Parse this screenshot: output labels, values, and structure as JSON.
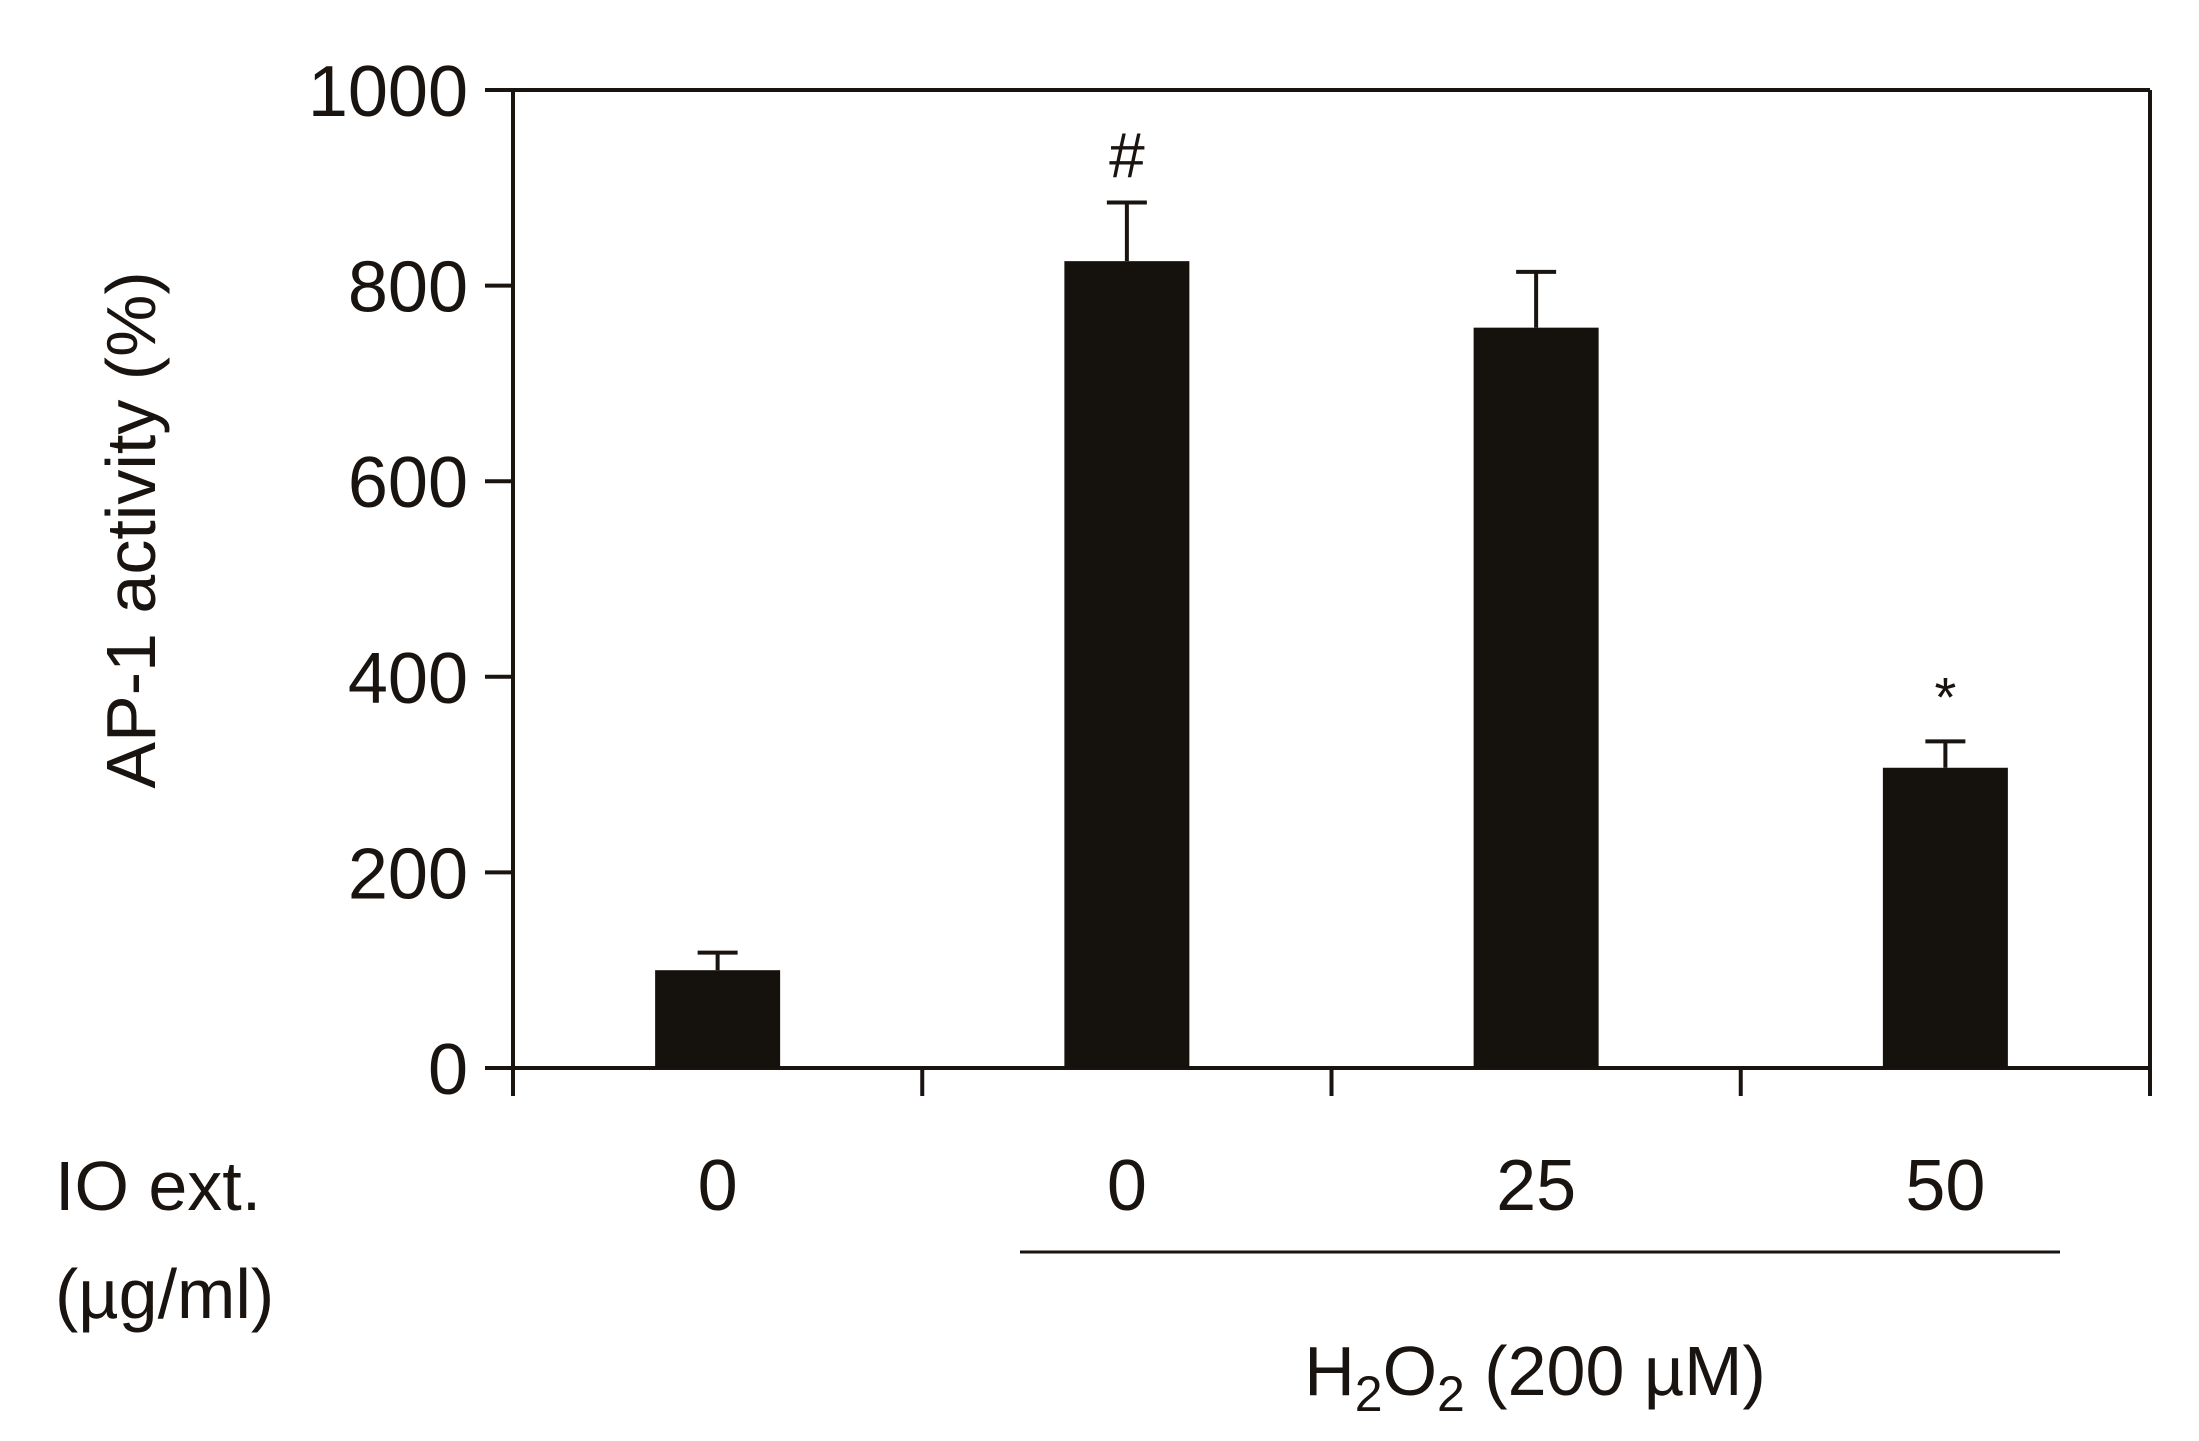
{
  "chart_data": {
    "type": "bar",
    "ylabel": "AP-1 activity (%)",
    "ylim": [
      0,
      1000
    ],
    "yticks": [
      0,
      200,
      400,
      600,
      800,
      1000
    ],
    "categories": [
      "0",
      "0",
      "25",
      "50"
    ],
    "values": [
      100,
      825,
      757,
      307
    ],
    "errors": [
      18,
      60,
      57,
      27
    ],
    "markers": [
      "",
      "#",
      "",
      "*"
    ],
    "x_row_label_line1": "IO ext.",
    "x_row_label_line2": "(µg/ml)",
    "group_label": {
      "prefix": "H",
      "sub1": "2",
      "mid": "O",
      "sub2": "2",
      "suffix": " (200 µM)"
    },
    "bar_color": "#15110d",
    "grid": false,
    "legend": false
  }
}
